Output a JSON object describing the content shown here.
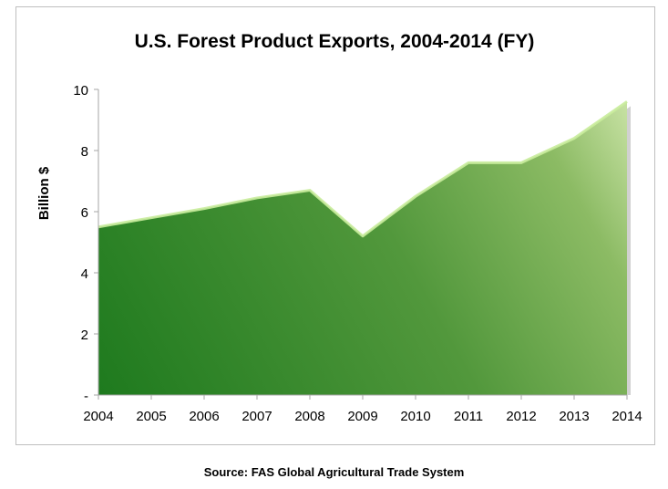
{
  "chart_data": {
    "type": "area",
    "title": "U.S. Forest Product Exports, 2004-2014 (FY)",
    "xlabel": "",
    "ylabel": "Billion $",
    "x": [
      "2004",
      "2005",
      "2006",
      "2007",
      "2008",
      "2009",
      "2010",
      "2011",
      "2012",
      "2013",
      "2014"
    ],
    "series": [
      {
        "values": [
          5.5,
          5.8,
          6.1,
          6.45,
          6.7,
          5.2,
          6.5,
          7.6,
          7.6,
          8.4,
          9.6
        ]
      }
    ],
    "ylim": [
      0,
      10
    ],
    "yticks": [
      0,
      2,
      4,
      6,
      8,
      10
    ],
    "ytick_labels": [
      "-",
      "2",
      "4",
      "6",
      "8",
      "10"
    ],
    "grid": false,
    "legend": "none",
    "colors": {
      "fill_dark": "#1e7a1e",
      "fill_light": "#b5d68a",
      "edge": "#c9ec9c"
    }
  },
  "footer": {
    "source": "Source: FAS Global Agricultural Trade System"
  }
}
